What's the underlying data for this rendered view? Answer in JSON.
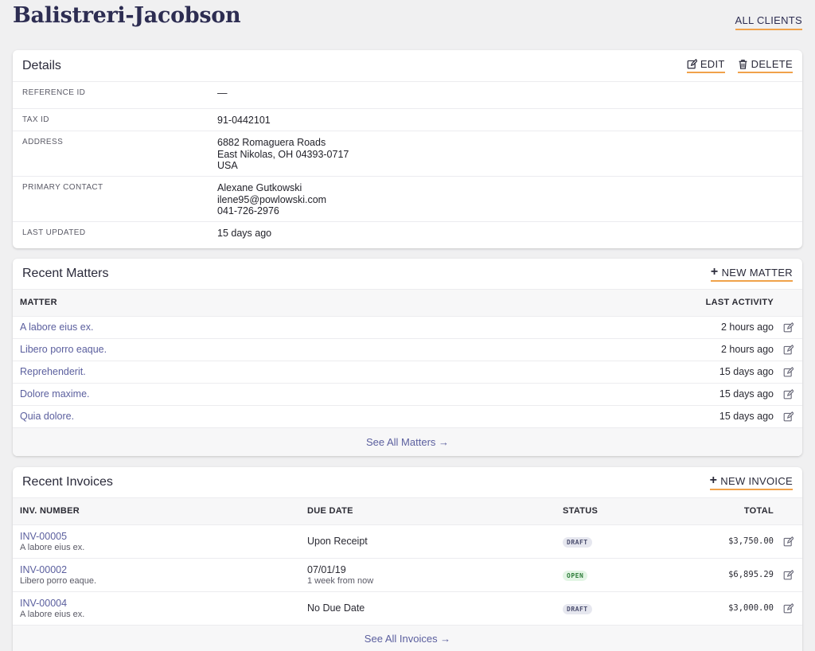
{
  "page": {
    "title": "Balistreri-Jacobson",
    "all_clients_label": "ALL CLIENTS"
  },
  "details": {
    "title": "Details",
    "edit_label": "EDIT",
    "delete_label": "DELETE",
    "reference_id_label": "REFERENCE ID",
    "reference_id_value": "—",
    "tax_id_label": "TAX ID",
    "tax_id_value": "91-0442101",
    "address_label": "ADDRESS",
    "address_line1": "6882 Romaguera Roads",
    "address_line2": "East Nikolas, OH 04393-0717",
    "address_line3": "USA",
    "contact_label": "PRIMARY CONTACT",
    "contact_name": "Alexane Gutkowski",
    "contact_email": "ilene95@powlowski.com",
    "contact_phone": "041-726-2976",
    "last_updated_label": "LAST UPDATED",
    "last_updated_value": "15 days ago"
  },
  "matters": {
    "title": "Recent Matters",
    "new_label": "NEW MATTER",
    "col_matter": "MATTER",
    "col_activity": "LAST ACTIVITY",
    "rows": [
      {
        "name": "A labore eius ex.",
        "activity": "2 hours ago"
      },
      {
        "name": "Libero porro eaque.",
        "activity": "2 hours ago"
      },
      {
        "name": "Reprehenderit.",
        "activity": "15 days ago"
      },
      {
        "name": "Dolore maxime.",
        "activity": "15 days ago"
      },
      {
        "name": "Quia dolore.",
        "activity": "15 days ago"
      }
    ],
    "see_all_label": "See All Matters →"
  },
  "invoices": {
    "title": "Recent Invoices",
    "new_label": "NEW INVOICE",
    "col_number": "INV. NUMBER",
    "col_due": "DUE DATE",
    "col_status": "STATUS",
    "col_total": "TOTAL",
    "rows": [
      {
        "number": "INV-00005",
        "matter": "A labore eius ex.",
        "due": "Upon Receipt",
        "due_sub": "",
        "status": "DRAFT",
        "total": "$3,750.00"
      },
      {
        "number": "INV-00002",
        "matter": "Libero porro eaque.",
        "due": "07/01/19",
        "due_sub": "1 week from now",
        "status": "OPEN",
        "total": "$6,895.29"
      },
      {
        "number": "INV-00004",
        "matter": "A labore eius ex.",
        "due": "No Due Date",
        "due_sub": "",
        "status": "DRAFT",
        "total": "$3,000.00"
      }
    ],
    "see_all_label": "See All Invoices →"
  },
  "colors": {
    "accent_underline": "#f0a24a",
    "link": "#5b5f9e",
    "title": "#2d2d52",
    "draft_badge_bg": "#e6e7ef",
    "draft_badge_fg": "#4a4d6e",
    "open_badge_bg": "#e3f5e5",
    "open_badge_fg": "#2e7d3a"
  }
}
